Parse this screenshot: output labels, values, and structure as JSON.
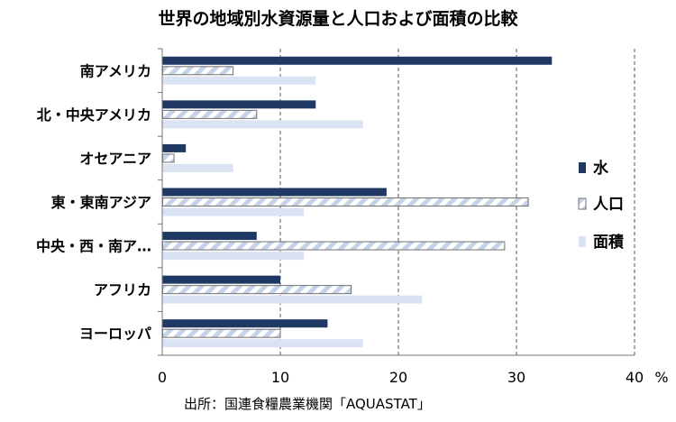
{
  "chart_data": {
    "type": "bar",
    "orientation": "horizontal",
    "title": "世界の地域別水資源量と人口および面積の比較",
    "source": "出所：国連食糧農業機関「AQUASTAT」",
    "unit_label": "%",
    "categories": [
      "南アメリカ",
      "北・中央アメリカ",
      "オセアニア",
      "東・東南アジア",
      "中央・西・南ア…",
      "アフリカ",
      "ヨーロッパ"
    ],
    "series": [
      {
        "name": "水",
        "color": "#1f3864",
        "values": [
          33,
          13,
          2,
          19,
          8,
          10,
          14
        ]
      },
      {
        "name": "人口",
        "color": "#c5d3e8",
        "values": [
          6,
          8,
          1,
          31,
          29,
          16,
          10
        ]
      },
      {
        "name": "面積",
        "color": "#dae3f3",
        "values": [
          13,
          17,
          6,
          12,
          12,
          22,
          17
        ]
      }
    ],
    "xlim": [
      0,
      40
    ],
    "xticks": [
      "0",
      "10",
      "20",
      "30",
      "40"
    ],
    "grid": "vertical dashed",
    "legend_position": "right"
  }
}
